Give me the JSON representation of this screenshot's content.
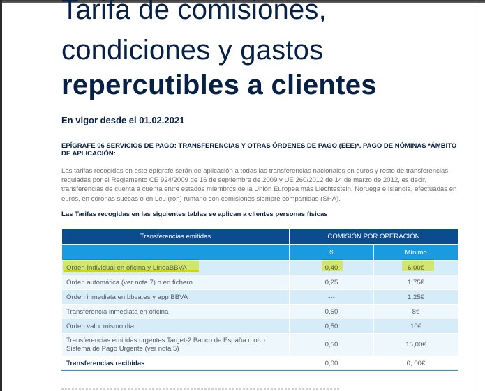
{
  "document": {
    "title_line1": "Tarifa de comisiones,",
    "title_line2": "condiciones y gastos",
    "title_line3": "repercutibles a clientes",
    "effective_date": "En vigor desde el 01.02.2021",
    "epigraph": "EPÍGRAFE 06 SERVICIOS DE PAGO: TRANSFERENCIAS Y OTRAS ÓRDENES DE PAGO (EEE)*. PAGO DE NÓMINAS *ÁMBITO DE APLICACIÓN:",
    "intro": "Las tarifas recogidas en este epígrafe serán de aplicación a todas las transferencias nacionales en euros y resto de transferencias reguladas por el Reglamento CE 924/2009 de 16 de septiembre de 2009 y UE 260/2012 de 14 de marzo de 2012, es decir, transferencias de cuenta a cuenta entre estados miembros de la Unión Europea más Liechtestein, Noruega e Islandia, efectuadas en euros, en coronas suecas o en Leu (ron) rumano con comisiones siempre compartidas (SHA).",
    "table_intro": "Las Tarifas recogidas en las siguientes tablas se aplican a clientes personas físicas"
  },
  "table": {
    "header_left": "Transferencias emitidas",
    "header_right": "COMISIÓN POR OPERACIÓN",
    "sub_pct": "%",
    "sub_min": "Mínimo",
    "rows": [
      {
        "concept": "Orden Individual en oficina y LíneaBBVA",
        "pct": "0,40",
        "min": "6,00€"
      },
      {
        "concept": "Orden  automática (ver nota 7) o en fichero",
        "pct": "0,25",
        "min": "1,75€"
      },
      {
        "concept": "Orden inmediata en bbva.es y app BBVA",
        "pct": "---",
        "min": "1,25€"
      },
      {
        "concept": "Transferencia inmediata en oficina",
        "pct": "0,50",
        "min": "8€"
      },
      {
        "concept": "Orden valor mismo día",
        "pct": "0,50",
        "min": "10€"
      },
      {
        "concept": "Transferencias emitidas urgentes Target-2 Banco de España u otro Sistema de Pago Urgente (ver nota 5)",
        "pct": "0,50",
        "min": "15,00€"
      }
    ],
    "received": {
      "concept": "Transferencias recibidas",
      "pct": "0,00",
      "min": "0, 00€"
    }
  },
  "colors": {
    "navy": "#072146",
    "header_dark": "#0c4b8e",
    "header_light": "#1a9be0",
    "row_light": "#d7ecf9",
    "row_lighter": "#eef7fc",
    "highlight_yellow": "#f5f200",
    "highlight_green": "#3fbf2a"
  }
}
